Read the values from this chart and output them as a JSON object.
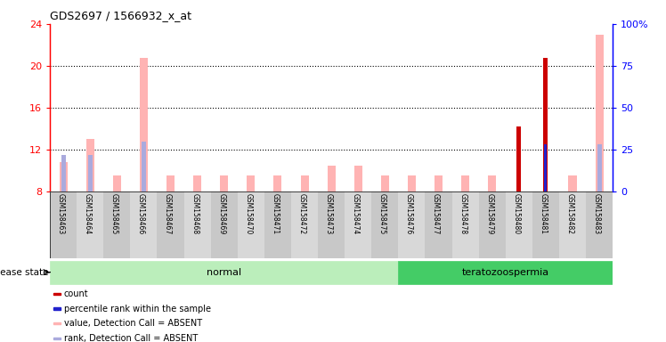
{
  "title": "GDS2697 / 1566932_x_at",
  "samples": [
    "GSM158463",
    "GSM158464",
    "GSM158465",
    "GSM158466",
    "GSM158467",
    "GSM158468",
    "GSM158469",
    "GSM158470",
    "GSM158471",
    "GSM158472",
    "GSM158473",
    "GSM158474",
    "GSM158475",
    "GSM158476",
    "GSM158477",
    "GSM158478",
    "GSM158479",
    "GSM158480",
    "GSM158481",
    "GSM158482",
    "GSM158483"
  ],
  "disease_state": [
    "normal",
    "normal",
    "normal",
    "normal",
    "normal",
    "normal",
    "normal",
    "normal",
    "normal",
    "normal",
    "normal",
    "normal",
    "normal",
    "teratozoospermia",
    "teratozoospermia",
    "teratozoospermia",
    "teratozoospermia",
    "teratozoospermia",
    "teratozoospermia",
    "teratozoospermia",
    "teratozoospermia"
  ],
  "value_absent": [
    10.8,
    13.0,
    9.5,
    20.8,
    9.5,
    9.5,
    9.5,
    9.5,
    9.5,
    9.5,
    10.5,
    10.5,
    9.5,
    9.5,
    9.5,
    9.5,
    9.5,
    0,
    0,
    9.5,
    23.0
  ],
  "rank_absent_left": [
    11.5,
    11.5,
    0,
    12.8,
    0,
    0,
    0,
    0,
    0,
    0,
    0,
    0,
    0,
    0,
    0,
    0,
    0,
    11.2,
    12.5,
    0,
    12.5
  ],
  "count": [
    0,
    0,
    0,
    0,
    0,
    0,
    0,
    0,
    0,
    0,
    0,
    0,
    0,
    0,
    0,
    0,
    0,
    14.2,
    20.8,
    0,
    0
  ],
  "percentile_rank_left": [
    0,
    0,
    0,
    0,
    0,
    0,
    0,
    0,
    0,
    0,
    0,
    0,
    0,
    0,
    0,
    0,
    0,
    0,
    12.5,
    0,
    0
  ],
  "ylim_left": [
    8,
    24
  ],
  "ylim_right": [
    0,
    100
  ],
  "yticks_left": [
    8,
    12,
    16,
    20,
    24
  ],
  "yticks_right": [
    0,
    25,
    50,
    75,
    100
  ],
  "ytick_right_labels": [
    "0",
    "25",
    "50",
    "75",
    "100%"
  ],
  "color_count": "#cc0000",
  "color_percentile": "#2222cc",
  "color_value_absent": "#ffb3b3",
  "color_rank_absent": "#aaaadd",
  "color_normal_bg": "#bbeebb",
  "color_terato_bg": "#44cc66",
  "legend_items": [
    {
      "label": "count",
      "color": "#cc0000"
    },
    {
      "label": "percentile rank within the sample",
      "color": "#2222cc"
    },
    {
      "label": "value, Detection Call = ABSENT",
      "color": "#ffb3b3"
    },
    {
      "label": "rank, Detection Call = ABSENT",
      "color": "#aaaadd"
    }
  ],
  "grid_lines": [
    12,
    16,
    20
  ],
  "normal_label": "normal",
  "terato_label": "teratozoospermia",
  "disease_state_label": "disease state"
}
